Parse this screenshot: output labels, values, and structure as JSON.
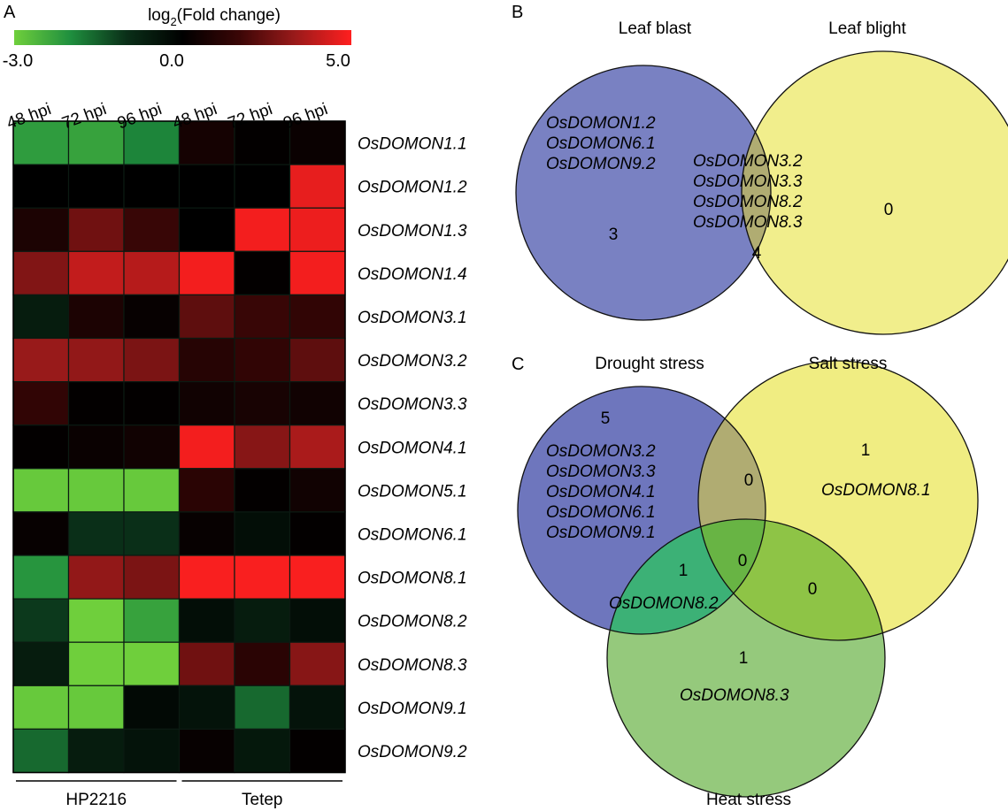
{
  "panels": {
    "a": "A",
    "b": "B",
    "c": "C"
  },
  "colorbar": {
    "title_prefix": "log",
    "title_sub": "2",
    "title_suffix": "(Fold change)",
    "min_label": "-3.0",
    "mid_label": "0.0",
    "max_label": "5.0",
    "colors": [
      "#6fcf3c",
      "#1f8f3e",
      "#0a2f18",
      "#000000",
      "#3a0606",
      "#9a1a1a",
      "#ff1f1f"
    ]
  },
  "chart_data": [
    {
      "type": "heatmap",
      "columns": [
        "48 hpi",
        "72 hpi",
        "96 hpi",
        "48 hpi",
        "72 hpi",
        "96 hpi"
      ],
      "groups": [
        {
          "name": "HP2216",
          "columns": [
            0,
            1,
            2
          ]
        },
        {
          "name": "Tetep",
          "columns": [
            3,
            4,
            5
          ]
        }
      ],
      "rows": [
        "OsDOMON1.1",
        "OsDOMON1.2",
        "OsDOMON1.3",
        "OsDOMON1.4",
        "OsDOMON3.1",
        "OsDOMON3.2",
        "OsDOMON3.3",
        "OsDOMON4.1",
        "OsDOMON5.1",
        "OsDOMON6.1",
        "OsDOMON8.1",
        "OsDOMON8.2",
        "OsDOMON8.3",
        "OsDOMON9.1",
        "OsDOMON9.2"
      ],
      "values": [
        [
          -2.2,
          -2.3,
          -1.9,
          0.6,
          0.1,
          0.3
        ],
        [
          0.0,
          0.0,
          0.0,
          0.0,
          0.0,
          4.6
        ],
        [
          0.8,
          2.6,
          1.6,
          0.0,
          4.8,
          4.7
        ],
        [
          2.9,
          4.0,
          3.8,
          4.8,
          0.1,
          4.8
        ],
        [
          -0.6,
          0.8,
          0.2,
          2.3,
          1.6,
          1.4
        ],
        [
          3.3,
          3.2,
          2.8,
          1.1,
          1.4,
          2.3
        ],
        [
          1.4,
          0.1,
          0.1,
          0.5,
          0.7,
          0.5
        ],
        [
          0.1,
          0.3,
          0.5,
          4.8,
          3.0,
          3.6
        ],
        [
          -2.9,
          -2.9,
          -2.9,
          1.2,
          0.1,
          0.5
        ],
        [
          0.2,
          -1.0,
          -1.0,
          0.2,
          -0.3,
          0.1
        ],
        [
          -2.1,
          3.2,
          2.8,
          4.9,
          4.9,
          4.9
        ],
        [
          -1.1,
          -3.0,
          -2.3,
          -0.3,
          -0.6,
          -0.3
        ],
        [
          -0.6,
          -3.0,
          -3.0,
          2.6,
          1.2,
          3.0
        ],
        [
          -2.9,
          -2.9,
          -0.2,
          -0.4,
          -1.6,
          -0.4
        ],
        [
          -1.6,
          -0.6,
          -0.4,
          0.2,
          -0.5,
          0.1
        ]
      ],
      "color_range": [
        -3.0,
        5.0
      ]
    },
    {
      "type": "venn",
      "sets": [
        {
          "name": "Leaf blast",
          "color": "#6e76bd"
        },
        {
          "name": "Leaf blight",
          "color": "#f0ed82"
        }
      ],
      "regions": [
        {
          "sets": [
            "Leaf blast"
          ],
          "count": "3",
          "genes": [
            "OsDOMON1.2",
            "OsDOMON6.1",
            "OsDOMON9.2"
          ]
        },
        {
          "sets": [
            "Leaf blast",
            "Leaf blight"
          ],
          "count": "4",
          "genes": [
            "OsDOMON3.2",
            "OsDOMON3.3",
            "OsDOMON8.2",
            "OsDOMON8.3"
          ]
        },
        {
          "sets": [
            "Leaf blight"
          ],
          "count": "0",
          "genes": []
        }
      ]
    },
    {
      "type": "venn",
      "sets": [
        {
          "name": "Drought stress",
          "color": "#6e76bd"
        },
        {
          "name": "Salt stress",
          "color": "#f0ed82"
        },
        {
          "name": "Heat stress",
          "color": "#95c97c"
        }
      ],
      "regions": [
        {
          "sets": [
            "Drought stress"
          ],
          "count": "5",
          "genes": [
            "OsDOMON3.2",
            "OsDOMON3.3",
            "OsDOMON4.1",
            "OsDOMON6.1",
            "OsDOMON9.1"
          ]
        },
        {
          "sets": [
            "Salt stress"
          ],
          "count": "1",
          "genes": [
            "OsDOMON8.1"
          ]
        },
        {
          "sets": [
            "Heat stress"
          ],
          "count": "1",
          "genes": [
            "OsDOMON8.3"
          ]
        },
        {
          "sets": [
            "Drought stress",
            "Salt stress"
          ],
          "count": "0",
          "genes": []
        },
        {
          "sets": [
            "Drought stress",
            "Heat stress"
          ],
          "count": "1",
          "genes": [
            "OsDOMON8.2"
          ]
        },
        {
          "sets": [
            "Salt stress",
            "Heat stress"
          ],
          "count": "0",
          "genes": []
        },
        {
          "sets": [
            "Drought stress",
            "Salt stress",
            "Heat stress"
          ],
          "count": "0",
          "genes": []
        }
      ]
    }
  ]
}
